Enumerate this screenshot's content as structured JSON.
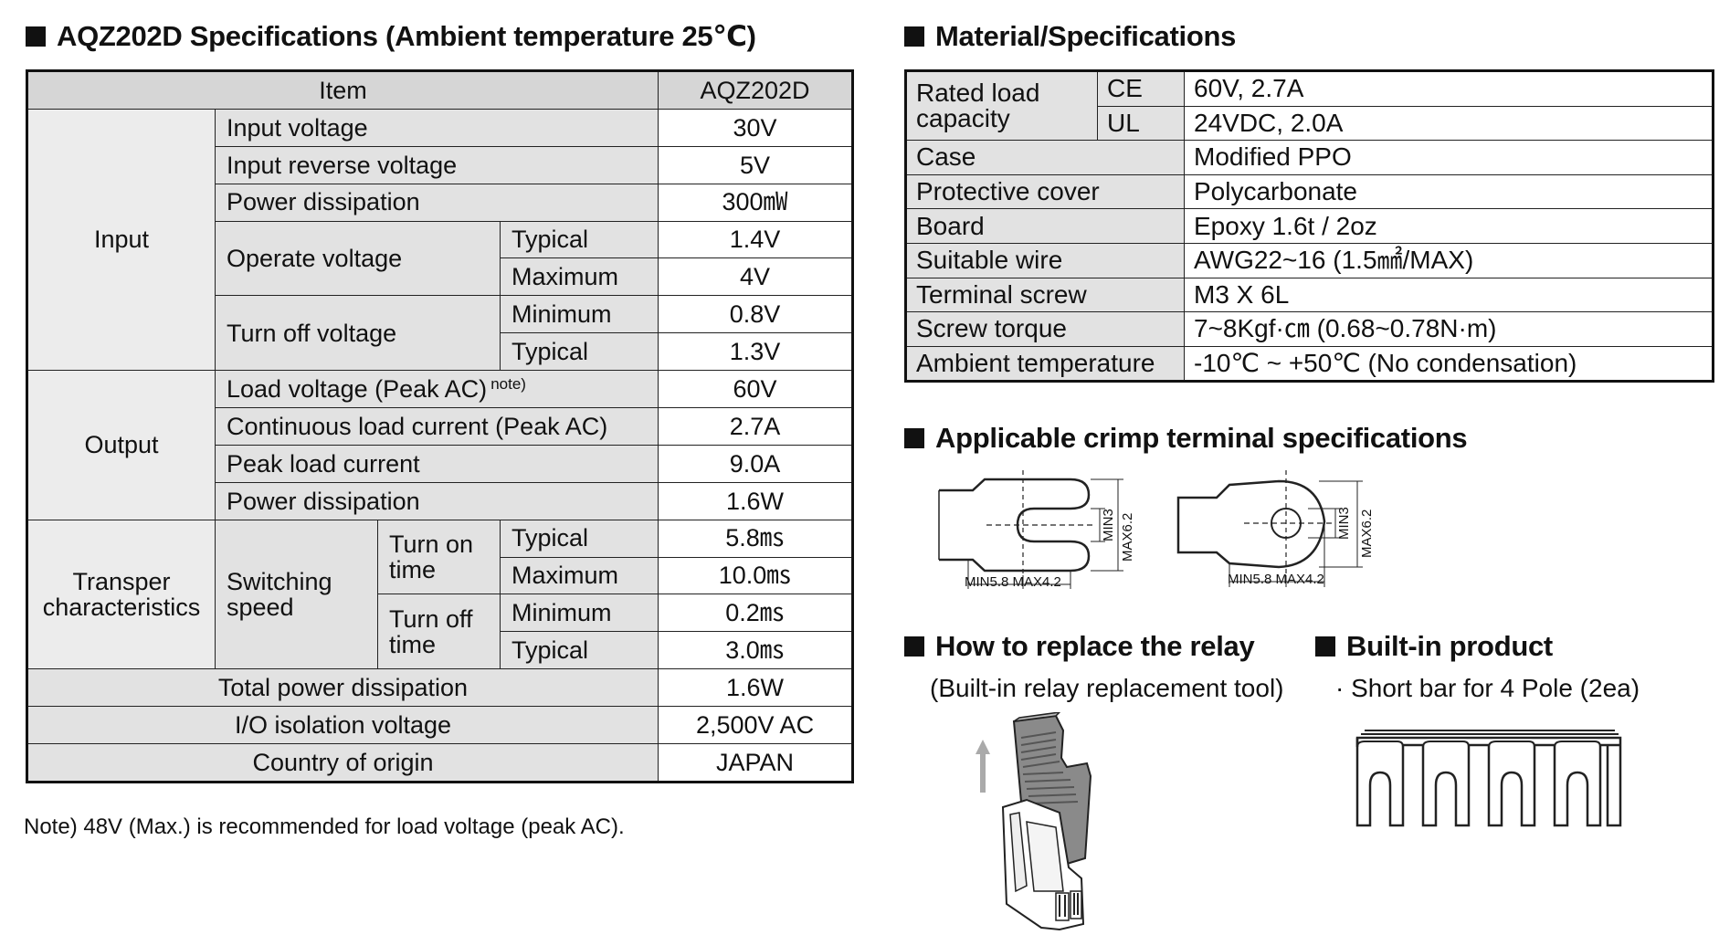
{
  "spec": {
    "title": "AQZ202D Specifications (Ambient temperature 25℃)",
    "header": {
      "item": "Item",
      "model": "AQZ202D"
    },
    "input": {
      "group": "Input",
      "input_voltage": {
        "label": "Input voltage",
        "value": "30V"
      },
      "input_reverse_voltage": {
        "label": "Input reverse voltage",
        "value": "5V"
      },
      "power_dissipation": {
        "label": "Power dissipation",
        "value": "300㎽"
      },
      "operate_voltage": {
        "label": "Operate voltage",
        "typical": {
          "label": "Typical",
          "value": "1.4V"
        },
        "maximum": {
          "label": "Maximum",
          "value": "4V"
        }
      },
      "turn_off_voltage": {
        "label": "Turn off voltage",
        "minimum": {
          "label": "Minimum",
          "value": "0.8V"
        },
        "typical": {
          "label": "Typical",
          "value": "1.3V"
        }
      }
    },
    "output": {
      "group": "Output",
      "load_voltage": {
        "label": "Load voltage (Peak AC)",
        "note": "note)",
        "value": "60V"
      },
      "continuous_load_current": {
        "label": "Continuous load current (Peak AC)",
        "value": "2.7A"
      },
      "peak_load_current": {
        "label": "Peak load current",
        "value": "9.0A"
      },
      "power_dissipation": {
        "label": "Power dissipation",
        "value": "1.6W"
      }
    },
    "transfer": {
      "group": "Transper characteristics",
      "switching_speed": "Switching speed",
      "turn_on_time": {
        "label": "Turn on time",
        "typical": {
          "label": "Typical",
          "value": "5.8㎳"
        },
        "maximum": {
          "label": "Maximum",
          "value": "10.0㎳"
        }
      },
      "turn_off_time": {
        "label": "Turn off time",
        "minimum": {
          "label": "Minimum",
          "value": "0.2㎳"
        },
        "typical": {
          "label": "Typical",
          "value": "3.0㎳"
        }
      }
    },
    "total_power_dissipation": {
      "label": "Total power dissipation",
      "value": "1.6W"
    },
    "io_isolation_voltage": {
      "label": "I/O isolation voltage",
      "value": "2,500V AC"
    },
    "country_of_origin": {
      "label": "Country of origin",
      "value": "JAPAN"
    },
    "note": "Note) 48V (Max.) is recommended for load voltage (peak AC)."
  },
  "material": {
    "title": "Material/Specifications",
    "rated_load_capacity": {
      "label": "Rated load capacity",
      "ce": {
        "label": "CE",
        "value": "60V, 2.7A"
      },
      "ul": {
        "label": "UL",
        "value": "24VDC, 2.0A"
      }
    },
    "rows": [
      {
        "label": "Case",
        "value": "Modified PPO"
      },
      {
        "label": "Protective cover",
        "value": "Polycarbonate"
      },
      {
        "label": "Board",
        "value": "Epoxy 1.6t / 2oz"
      },
      {
        "label": "Suitable wire",
        "value": "AWG22~16 (1.5㎟/MAX)"
      },
      {
        "label": "Terminal screw",
        "value": "M3 X 6L"
      },
      {
        "label": "Screw torque",
        "value": "7~8Kgf·㎝ (0.68~0.78N·m)"
      },
      {
        "label": "Ambient temperature",
        "value": "-10℃ ~ +50℃ (No condensation)"
      }
    ]
  },
  "crimp": {
    "title": "Applicable crimp terminal specifications",
    "fork": {
      "min3": "MIN3",
      "max62": "MAX6.2",
      "bottom": "MIN5.8 MAX4.2"
    },
    "ring": {
      "min3": "MIN3",
      "max62": "MAX6.2",
      "bottom": "MIN5.8 MAX4.2"
    }
  },
  "replace": {
    "title": "How to replace the relay",
    "subtitle": "(Built-in relay replacement tool)"
  },
  "builtin": {
    "title": "Built-in product",
    "item": "· Short bar for 4 Pole (2ea)"
  }
}
